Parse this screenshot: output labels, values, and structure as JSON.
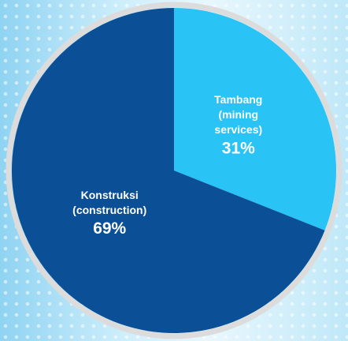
{
  "chart_data": {
    "type": "pie",
    "categories": [
      [
        "Tambang",
        "(mining",
        "services)"
      ],
      [
        "Konstruksi",
        "(construction)"
      ]
    ],
    "values": [
      31,
      69
    ],
    "value_labels": [
      "31%",
      "69%"
    ],
    "colors": [
      "#29c3f5",
      "#0b4f97"
    ]
  }
}
